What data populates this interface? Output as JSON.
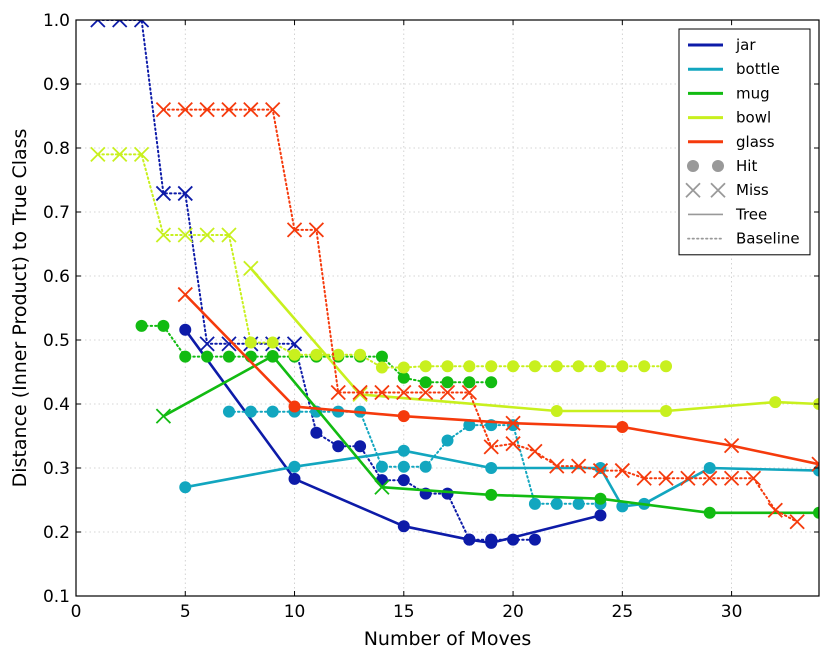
{
  "chart_data": {
    "type": "line",
    "title": "",
    "xlabel": "Number of Moves",
    "ylabel": "Distance (Inner Product) to True Class",
    "xlim": [
      0,
      34
    ],
    "ylim": [
      0.1,
      1.0
    ],
    "xticks": [
      0,
      5,
      10,
      15,
      20,
      25,
      30
    ],
    "xtick_labels": [
      "0",
      "5",
      "10",
      "15",
      "20",
      "25",
      "30"
    ],
    "yticks": [
      0.1,
      0.2,
      0.3,
      0.4,
      0.5,
      0.6,
      0.7,
      0.8,
      0.9,
      1.0
    ],
    "ytick_labels": [
      "0.1",
      "0.2",
      "0.3",
      "0.4",
      "0.5",
      "0.6",
      "0.7",
      "0.8",
      "0.9",
      "1.0"
    ],
    "grid": true,
    "legend_position": "top-right",
    "legend": [
      {
        "label": "jar",
        "kind": "line",
        "color": "#0d1ba8"
      },
      {
        "label": "bottle",
        "kind": "line",
        "color": "#12a6bf"
      },
      {
        "label": "mug",
        "kind": "line",
        "color": "#12bb12"
      },
      {
        "label": "bowl",
        "kind": "line",
        "color": "#c8f01e"
      },
      {
        "label": "glass",
        "kind": "line",
        "color": "#f53a0c"
      },
      {
        "label": "Hit",
        "kind": "hit",
        "color": "#999999"
      },
      {
        "label": "Miss",
        "kind": "miss",
        "color": "#999999"
      },
      {
        "label": "Tree",
        "kind": "solid",
        "color": "#999999"
      },
      {
        "label": "Baseline",
        "kind": "dotted",
        "color": "#999999"
      }
    ],
    "series": [
      {
        "name": "jar",
        "method": "Baseline",
        "color": "#0d1ba8",
        "dotted": true,
        "x": [
          1,
          2,
          3,
          4,
          5,
          6,
          7,
          8,
          9,
          10,
          11,
          12,
          13,
          14,
          15,
          16,
          17,
          18,
          19,
          20,
          21
        ],
        "y": [
          1.0,
          1.0,
          1.0,
          0.729,
          0.729,
          0.494,
          0.494,
          0.494,
          0.494,
          0.494,
          0.355,
          0.334,
          0.334,
          0.281,
          0.281,
          0.26,
          0.26,
          0.188,
          0.188,
          0.188,
          0.188
        ],
        "markers": [
          "miss",
          "miss",
          "miss",
          "miss",
          "miss",
          "miss",
          "miss",
          "miss",
          "miss",
          "miss",
          "hit",
          "hit",
          "hit",
          "hit",
          "hit",
          "hit",
          "hit",
          "hit",
          "hit",
          "hit",
          "hit"
        ]
      },
      {
        "name": "jar",
        "method": "Tree",
        "color": "#0d1ba8",
        "dotted": false,
        "x": [
          5,
          10,
          15,
          18,
          19,
          24
        ],
        "y": [
          0.516,
          0.283,
          0.209,
          0.188,
          0.183,
          0.226
        ],
        "markers": [
          "hit",
          "hit",
          "hit",
          "hit",
          "hit",
          "hit"
        ]
      },
      {
        "name": "bottle",
        "method": "Baseline",
        "color": "#12a6bf",
        "dotted": true,
        "x": [
          7,
          8,
          9,
          10,
          11,
          12,
          13,
          14,
          15,
          16,
          17,
          18,
          19,
          20,
          21,
          22,
          23,
          24
        ],
        "y": [
          0.388,
          0.388,
          0.388,
          0.388,
          0.388,
          0.388,
          0.388,
          0.302,
          0.302,
          0.302,
          0.343,
          0.367,
          0.367,
          0.367,
          0.244,
          0.244,
          0.244,
          0.244
        ],
        "markers": [
          "hit",
          "hit",
          "hit",
          "hit",
          "hit",
          "hit",
          "hit",
          "hit",
          "hit",
          "hit",
          "hit",
          "hit",
          "hit",
          "hit",
          "hit",
          "hit",
          "hit",
          "hit"
        ]
      },
      {
        "name": "bottle",
        "method": "Tree",
        "color": "#12a6bf",
        "dotted": false,
        "x": [
          5,
          10,
          15,
          19,
          24,
          25,
          26,
          29,
          34
        ],
        "y": [
          0.27,
          0.302,
          0.327,
          0.3,
          0.3,
          0.24,
          0.244,
          0.3,
          0.296
        ],
        "markers": [
          "hit",
          "hit",
          "hit",
          "hit",
          "hit",
          "hit",
          "hit",
          "hit",
          "hit"
        ]
      },
      {
        "name": "mug",
        "method": "Baseline",
        "color": "#12bb12",
        "dotted": true,
        "x": [
          3,
          4,
          5,
          6,
          7,
          8,
          9,
          10,
          11,
          12,
          13,
          14,
          15,
          16,
          17,
          18,
          19
        ],
        "y": [
          0.522,
          0.522,
          0.474,
          0.474,
          0.474,
          0.474,
          0.474,
          0.474,
          0.474,
          0.474,
          0.474,
          0.474,
          0.441,
          0.434,
          0.434,
          0.434,
          0.434
        ],
        "markers": [
          "hit",
          "hit",
          "hit",
          "hit",
          "hit",
          "hit",
          "hit",
          "hit",
          "hit",
          "hit",
          "hit",
          "hit",
          "hit",
          "hit",
          "hit",
          "hit",
          "hit"
        ]
      },
      {
        "name": "mug",
        "method": "Tree",
        "color": "#12bb12",
        "dotted": false,
        "x": [
          4,
          9,
          14,
          19,
          24,
          29,
          34
        ],
        "y": [
          0.381,
          0.475,
          0.27,
          0.258,
          0.252,
          0.23,
          0.23
        ],
        "markers": [
          "miss",
          "hit",
          "miss",
          "hit",
          "hit",
          "hit",
          "hit"
        ]
      },
      {
        "name": "bowl",
        "method": "Baseline",
        "color": "#c8f01e",
        "dotted": true,
        "x": [
          1,
          2,
          3,
          4,
          5,
          6,
          7,
          8,
          9,
          10,
          11,
          12,
          13,
          14,
          15,
          16,
          17,
          18,
          19,
          20,
          21,
          22,
          23,
          24,
          25,
          26,
          27
        ],
        "y": [
          0.79,
          0.79,
          0.79,
          0.664,
          0.664,
          0.664,
          0.664,
          0.496,
          0.496,
          0.477,
          0.477,
          0.477,
          0.477,
          0.457,
          0.457,
          0.459,
          0.459,
          0.459,
          0.459,
          0.459,
          0.459,
          0.459,
          0.459,
          0.459,
          0.459,
          0.459,
          0.459
        ],
        "markers": [
          "miss",
          "miss",
          "miss",
          "miss",
          "miss",
          "miss",
          "miss",
          "hit",
          "hit",
          "hit",
          "hit",
          "hit",
          "hit",
          "hit",
          "hit",
          "hit",
          "hit",
          "hit",
          "hit",
          "hit",
          "hit",
          "hit",
          "hit",
          "hit",
          "hit",
          "hit",
          "hit"
        ]
      },
      {
        "name": "bowl",
        "method": "Tree",
        "color": "#c8f01e",
        "dotted": false,
        "x": [
          8,
          13,
          22,
          27,
          32,
          34
        ],
        "y": [
          0.612,
          0.415,
          0.389,
          0.389,
          0.403,
          0.4
        ],
        "markers": [
          "miss",
          "miss",
          "hit",
          "hit",
          "hit",
          "hit"
        ]
      },
      {
        "name": "glass",
        "method": "Baseline",
        "color": "#f53a0c",
        "dotted": true,
        "x": [
          4,
          5,
          6,
          7,
          8,
          9,
          10,
          11,
          12,
          13,
          14,
          15,
          16,
          17,
          18,
          19,
          20,
          21,
          22,
          23,
          24,
          25,
          26,
          27,
          28,
          29,
          30,
          31,
          32,
          33
        ],
        "y": [
          0.86,
          0.86,
          0.86,
          0.86,
          0.86,
          0.86,
          0.672,
          0.672,
          0.418,
          0.418,
          0.418,
          0.418,
          0.418,
          0.418,
          0.418,
          0.333,
          0.338,
          0.326,
          0.303,
          0.303,
          0.296,
          0.296,
          0.284,
          0.284,
          0.284,
          0.284,
          0.284,
          0.284,
          0.234,
          0.216
        ],
        "markers": [
          "miss",
          "miss",
          "miss",
          "miss",
          "miss",
          "miss",
          "miss",
          "miss",
          "miss",
          "miss",
          "miss",
          "miss",
          "miss",
          "miss",
          "miss",
          "miss",
          "miss",
          "miss",
          "miss",
          "miss",
          "miss",
          "miss",
          "miss",
          "miss",
          "miss",
          "miss",
          "miss",
          "miss",
          "miss",
          "miss"
        ]
      },
      {
        "name": "glass",
        "method": "Tree",
        "color": "#f53a0c",
        "dotted": false,
        "x": [
          5,
          10,
          15,
          20,
          25,
          30,
          34
        ],
        "y": [
          0.571,
          0.396,
          0.381,
          0.37,
          0.364,
          0.335,
          0.306
        ],
        "markers": [
          "miss",
          "hit",
          "hit",
          "miss",
          "hit",
          "miss",
          "miss"
        ]
      }
    ]
  }
}
